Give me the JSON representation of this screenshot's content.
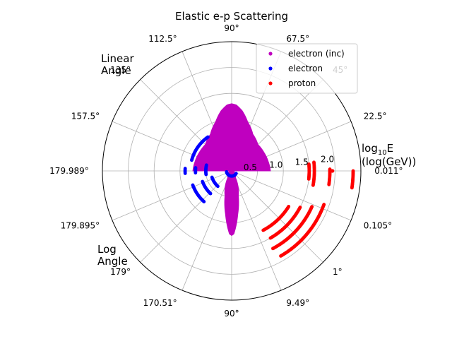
{
  "chart_data": {
    "type": "scatter",
    "projection": "polar",
    "title": "Elastic e-p Scattering",
    "radial_axis": {
      "label": "log$_{10}$E (log(GeV))",
      "label_main": "log",
      "label_sub": "10",
      "label_rest": "E",
      "label_line2": "(log(GeV))",
      "range": [
        0,
        2.5
      ],
      "ticks": [
        0.5,
        1.0,
        1.5,
        2.0
      ],
      "tick_labels": [
        "0.5",
        "1.0",
        "1.5",
        "2.0"
      ]
    },
    "upper_half_label": [
      "Linear",
      "Angle"
    ],
    "lower_half_label": [
      "Log",
      "Angle"
    ],
    "angular_ticks": [
      {
        "deg": 0,
        "label": "0.011°"
      },
      {
        "deg": 22.5,
        "label": "22.5°"
      },
      {
        "deg": 45,
        "label": "45°"
      },
      {
        "deg": 67.5,
        "label": "67.5°"
      },
      {
        "deg": 90,
        "label": "90°"
      },
      {
        "deg": 112.5,
        "label": "112.5°"
      },
      {
        "deg": 135,
        "label": "135°"
      },
      {
        "deg": 157.5,
        "label": "157.5°"
      },
      {
        "deg": 180,
        "label": "179.989°"
      },
      {
        "deg": 202.5,
        "label": "179.895°"
      },
      {
        "deg": 225,
        "label": "179°"
      },
      {
        "deg": 247.5,
        "label": "170.51°"
      },
      {
        "deg": 270,
        "label": "90°"
      },
      {
        "deg": 292.5,
        "label": "9.49°"
      },
      {
        "deg": 315,
        "label": "1°"
      },
      {
        "deg": 337.5,
        "label": "0.105°"
      }
    ],
    "grid": true,
    "legend": {
      "placement": "top-right",
      "entries": [
        {
          "name": "electron (inc)",
          "color": "#bf00bf"
        },
        {
          "name": "electron",
          "color": "#0000ff"
        },
        {
          "name": "proton",
          "color": "#ff0000"
        }
      ]
    },
    "series": [
      {
        "name": "electron (inc)",
        "color": "#bf00bf",
        "kind": "filled-lobes",
        "upper_lobe": [
          [
            0,
            0.75
          ],
          [
            15,
            0.73
          ],
          [
            30,
            0.72
          ],
          [
            45,
            0.72
          ],
          [
            60,
            0.82
          ],
          [
            72,
            1.0
          ],
          [
            80,
            1.18
          ],
          [
            86,
            1.28
          ],
          [
            90,
            1.3
          ],
          [
            94,
            1.28
          ],
          [
            100,
            1.18
          ],
          [
            108,
            1.0
          ],
          [
            120,
            0.82
          ],
          [
            135,
            0.72
          ],
          [
            150,
            0.72
          ],
          [
            165,
            0.73
          ],
          [
            180,
            0.75
          ]
        ],
        "lower_lobe": [
          [
            180,
            0.05
          ],
          [
            210,
            0.06
          ],
          [
            240,
            0.15
          ],
          [
            255,
            0.5
          ],
          [
            262,
            0.85
          ],
          [
            266,
            1.1
          ],
          [
            268,
            1.22
          ],
          [
            270,
            1.25
          ],
          [
            272,
            1.22
          ],
          [
            274,
            1.1
          ],
          [
            278,
            0.85
          ],
          [
            285,
            0.5
          ],
          [
            300,
            0.15
          ],
          [
            330,
            0.06
          ],
          [
            360,
            0.05
          ]
        ]
      },
      {
        "name": "electron",
        "color": "#0000ff",
        "arcs": [
          {
            "r": 0.7,
            "deg_from": 175,
            "deg_to": 183
          },
          {
            "r": 0.9,
            "deg_from": 177,
            "deg_to": 183
          },
          {
            "r": 0.5,
            "deg_from": 167,
            "deg_to": 188
          },
          {
            "r": 0.8,
            "deg_from": 125,
            "deg_to": 165
          },
          {
            "r": 0.8,
            "deg_from": 200,
            "deg_to": 228
          },
          {
            "r": 0.6,
            "deg_from": 200,
            "deg_to": 227
          },
          {
            "r": 0.4,
            "deg_from": 198,
            "deg_to": 228
          },
          {
            "r": 0.1,
            "deg_from": 190,
            "deg_to": 330
          }
        ]
      },
      {
        "name": "proton",
        "color": "#ff0000",
        "arcs": [
          {
            "r": 1.5,
            "deg_from": -6,
            "deg_to": 5
          },
          {
            "r": 1.6,
            "deg_from": -10,
            "deg_to": 6
          },
          {
            "r": 1.9,
            "deg_from": -8,
            "deg_to": 1
          },
          {
            "r": 2.35,
            "deg_from": -8,
            "deg_to": 0
          },
          {
            "r": 1.9,
            "deg_from": -60,
            "deg_to": -20
          },
          {
            "r": 1.7,
            "deg_from": -62,
            "deg_to": -24
          },
          {
            "r": 1.5,
            "deg_from": -60,
            "deg_to": -28
          },
          {
            "r": 1.3,
            "deg_from": -62,
            "deg_to": -32
          }
        ],
        "points": [
          {
            "deg": 0,
            "r": 1.95
          }
        ]
      }
    ]
  }
}
